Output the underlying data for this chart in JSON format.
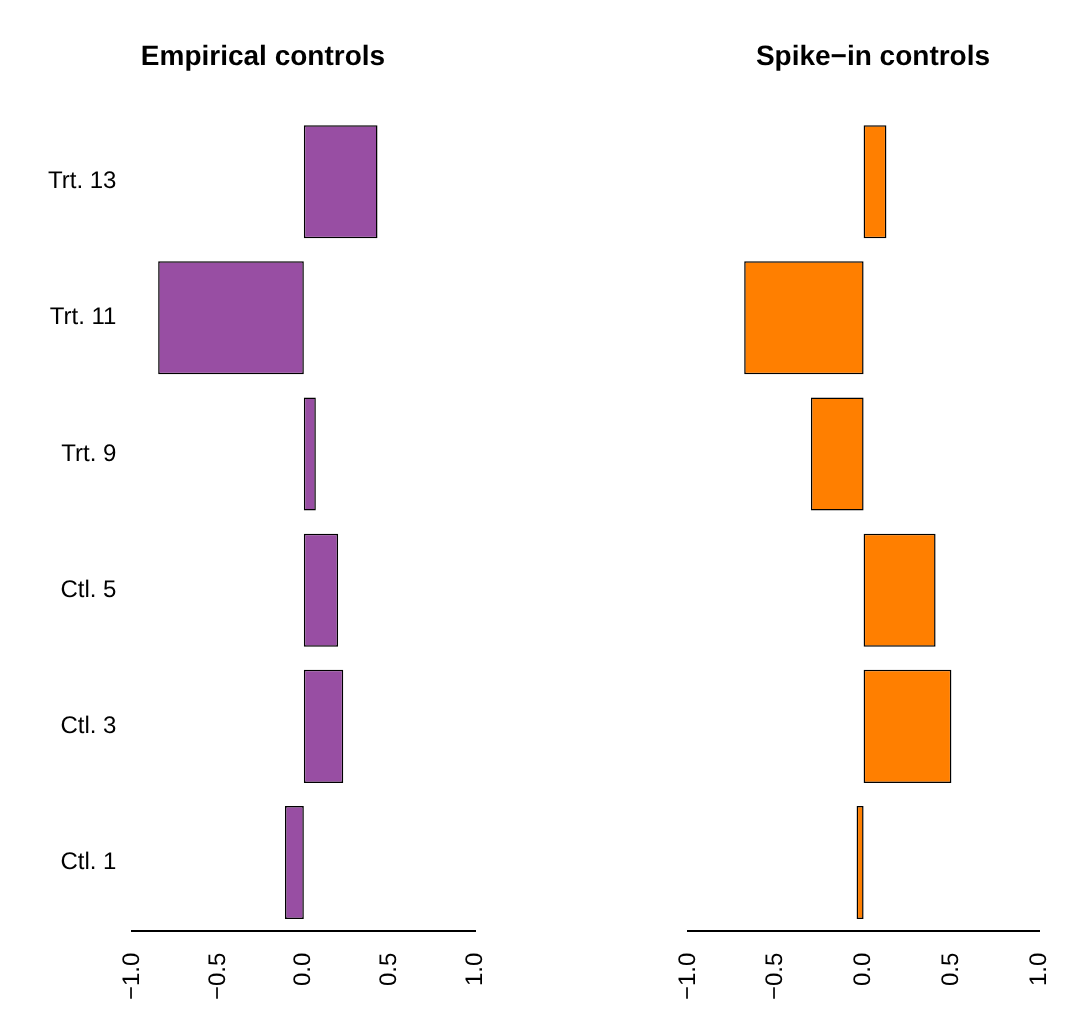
{
  "chart_data": [
    {
      "type": "bar",
      "orientation": "horizontal",
      "title": "Empirical controls",
      "categories": [
        "Trt. 13",
        "Trt. 11",
        "Trt. 9",
        "Ctl. 5",
        "Ctl. 3",
        "Ctl. 1"
      ],
      "values": [
        0.43,
        -0.85,
        0.07,
        0.2,
        0.23,
        -0.11
      ],
      "color": "#984ea3",
      "xlim": [
        -1,
        1
      ],
      "xticks": [
        {
          "value": -1,
          "label": "−1.0"
        },
        {
          "value": -0.5,
          "label": "−0.5"
        },
        {
          "value": 0,
          "label": "0.0"
        },
        {
          "value": 0.5,
          "label": "0.5"
        },
        {
          "value": 1,
          "label": "1.0"
        }
      ],
      "grid": false,
      "legend": false
    },
    {
      "type": "bar",
      "orientation": "horizontal",
      "title": "Spike−in controls",
      "values": [
        0.13,
        -0.68,
        -0.3,
        0.41,
        0.5,
        -0.04
      ],
      "color": "#ff7f00",
      "xlim": [
        -1,
        1
      ],
      "xticks": [
        {
          "value": -1,
          "label": "−1.0"
        },
        {
          "value": -0.5,
          "label": "−0.5"
        },
        {
          "value": 0,
          "label": "0.0"
        },
        {
          "value": 0.5,
          "label": "0.5"
        },
        {
          "value": 1,
          "label": "1.0"
        }
      ],
      "grid": false,
      "legend": false,
      "tick_labels": "x"
    }
  ]
}
